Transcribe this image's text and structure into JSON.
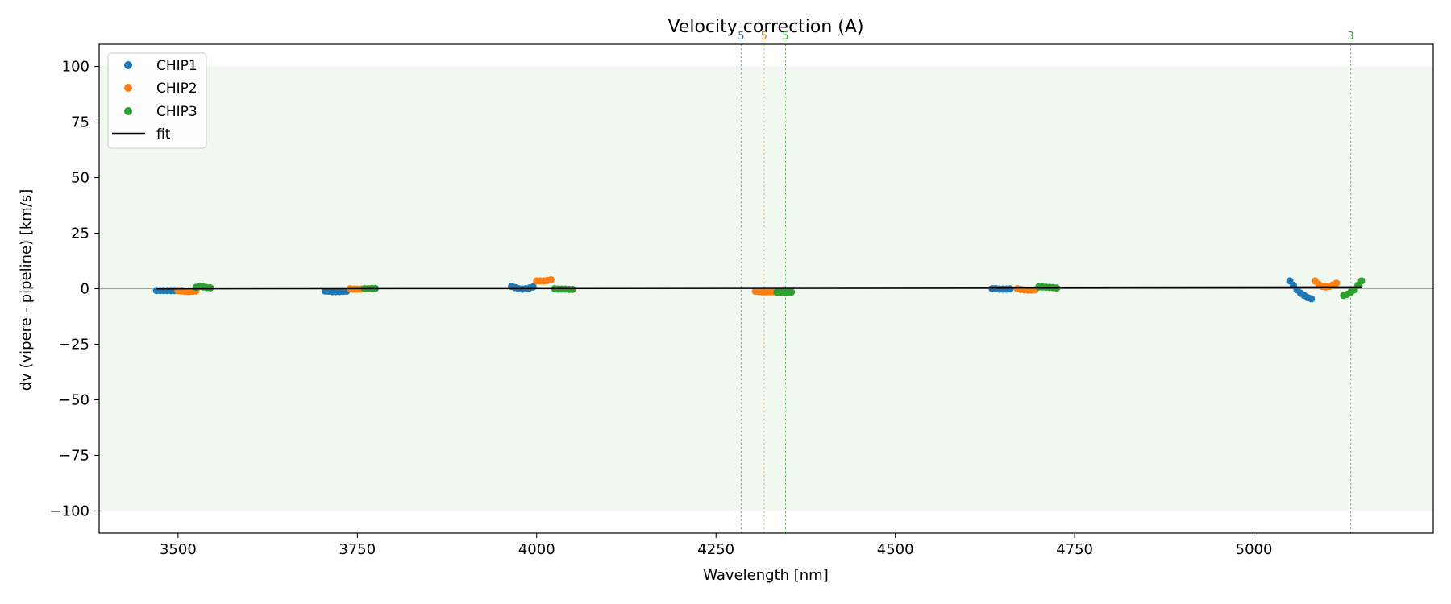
{
  "chart_data": {
    "type": "scatter",
    "title": "Velocity correction (A)",
    "xlabel": "Wavelength [nm]",
    "ylabel": "dv (vipere - pipeline) [km/s]",
    "xlim": [
      3390,
      5250
    ],
    "ylim": [
      -110,
      110
    ],
    "x_ticks": [
      3500,
      3750,
      4000,
      4250,
      4500,
      4750,
      5000
    ],
    "y_ticks": [
      100,
      75,
      50,
      25,
      0,
      -25,
      -50,
      -75,
      -100
    ],
    "grid": false,
    "legend_position": "top-left",
    "allowed_band": {
      "ymin": -100,
      "ymax": 100,
      "color": "#2ca02c"
    },
    "zero_line": {
      "y": 0,
      "color": "#888888"
    },
    "series": [
      {
        "name": "CHIP1",
        "color": "#1f77b4",
        "marker": "circle",
        "segments": [
          {
            "x": [
              3470,
              3475,
              3480,
              3485,
              3490,
              3495,
              3500,
              3505
            ],
            "y": [
              -0.8,
              -0.8,
              -0.8,
              -0.8,
              -0.8,
              -0.8,
              -0.8,
              -0.8
            ]
          },
          {
            "x": [
              3705,
              3710,
              3715,
              3720,
              3725,
              3730,
              3735
            ],
            "y": [
              -1.0,
              -1.1,
              -1.3,
              -1.3,
              -1.3,
              -1.2,
              -1.1
            ]
          },
          {
            "x": [
              3965,
              3970,
              3975,
              3980,
              3985,
              3990,
              3995
            ],
            "y": [
              1.0,
              0.5,
              0.0,
              -0.2,
              0.0,
              0.3,
              0.8
            ]
          },
          {
            "x": [
              4635,
              4640,
              4645,
              4650,
              4655,
              4660
            ],
            "y": [
              0.0,
              0.0,
              -0.2,
              -0.2,
              -0.2,
              -0.1
            ]
          },
          {
            "x": [
              5050,
              5055,
              5060,
              5065,
              5070,
              5075,
              5080
            ],
            "y": [
              3.5,
              1.5,
              -0.5,
              -2.0,
              -3.0,
              -4.0,
              -4.5
            ]
          }
        ]
      },
      {
        "name": "CHIP2",
        "color": "#ff7f0e",
        "marker": "circle",
        "segments": [
          {
            "x": [
              3500,
              3505,
              3510,
              3515,
              3520,
              3525
            ],
            "y": [
              -0.8,
              -1.0,
              -1.2,
              -1.3,
              -1.2,
              -1.0
            ]
          },
          {
            "x": [
              3740,
              3745,
              3750,
              3755,
              3760
            ],
            "y": [
              0.0,
              -0.2,
              -0.2,
              -0.2,
              -0.1
            ]
          },
          {
            "x": [
              4000,
              4005,
              4010,
              4015,
              4020
            ],
            "y": [
              3.5,
              3.5,
              3.5,
              3.7,
              4.0
            ]
          },
          {
            "x": [
              4305,
              4310,
              4315,
              4320,
              4325,
              4330
            ],
            "y": [
              -1.2,
              -1.3,
              -1.4,
              -1.4,
              -1.4,
              -1.4
            ]
          },
          {
            "x": [
              4670,
              4675,
              4680,
              4685,
              4690,
              4695
            ],
            "y": [
              0.0,
              -0.3,
              -0.5,
              -0.6,
              -0.6,
              -0.5
            ]
          },
          {
            "x": [
              5085,
              5090,
              5095,
              5100,
              5105,
              5110,
              5115
            ],
            "y": [
              3.5,
              2.0,
              1.0,
              0.8,
              1.0,
              1.6,
              2.5
            ]
          }
        ]
      },
      {
        "name": "CHIP3",
        "color": "#2ca02c",
        "marker": "circle",
        "segments": [
          {
            "x": [
              3525,
              3530,
              3535,
              3540,
              3545
            ],
            "y": [
              0.6,
              1.0,
              0.8,
              0.5,
              0.4
            ]
          },
          {
            "x": [
              3760,
              3765,
              3770,
              3775
            ],
            "y": [
              0.0,
              0.0,
              0.1,
              0.1
            ]
          },
          {
            "x": [
              4025,
              4030,
              4035,
              4040,
              4045,
              4050
            ],
            "y": [
              0.0,
              -0.2,
              -0.2,
              -0.2,
              -0.3,
              -0.3
            ]
          },
          {
            "x": [
              4335,
              4340,
              4345,
              4350,
              4355
            ],
            "y": [
              -1.5,
              -1.5,
              -1.6,
              -1.6,
              -1.5
            ]
          },
          {
            "x": [
              4700,
              4705,
              4710,
              4715,
              4720,
              4725
            ],
            "y": [
              0.8,
              0.8,
              0.7,
              0.6,
              0.5,
              0.3
            ]
          },
          {
            "x": [
              5125,
              5130,
              5135,
              5140,
              5145,
              5150
            ],
            "y": [
              -3.0,
              -2.5,
              -1.5,
              -0.5,
              1.5,
              3.5
            ]
          }
        ]
      }
    ],
    "fit": {
      "name": "fit",
      "color": "#000000",
      "x": [
        3470,
        5150
      ],
      "y": [
        0.1,
        0.6
      ]
    },
    "flag_lines": [
      {
        "x": 4285,
        "label": "5",
        "color": "#1f77b4"
      },
      {
        "x": 4317,
        "label": "5",
        "color": "#ff7f0e"
      },
      {
        "x": 4347,
        "label": "5",
        "color": "#2ca02c"
      },
      {
        "x": 5135,
        "label": "3",
        "color": "#2ca02c"
      }
    ]
  }
}
